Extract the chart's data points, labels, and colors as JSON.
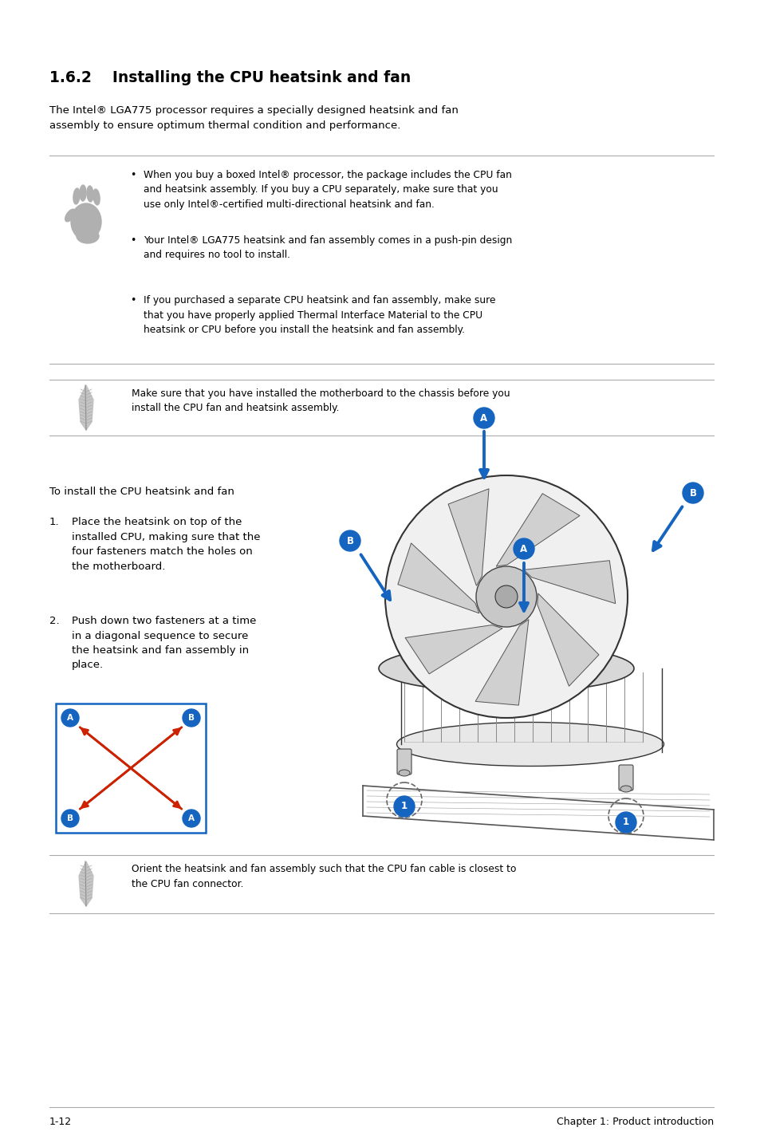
{
  "bg_color": "#ffffff",
  "page_width": 9.54,
  "page_height": 14.38,
  "section_title_num": "1.6.2",
  "section_title_text": "Installing the CPU heatsink and fan",
  "intro_text": "The Intel® LGA775 processor requires a specially designed heatsink and fan\nassembly to ensure optimum thermal condition and performance.",
  "warning_bullets": [
    "When you buy a boxed Intel® processor, the package includes the CPU fan\nand heatsink assembly. If you buy a CPU separately, make sure that you\nuse only Intel®-certified multi-directional heatsink and fan.",
    "Your Intel® LGA775 heatsink and fan assembly comes in a push-pin design\nand requires no tool to install.",
    "If you purchased a separate CPU heatsink and fan assembly, make sure\nthat you have properly applied Thermal Interface Material to the CPU\nheatsink or CPU before you install the heatsink and fan assembly."
  ],
  "note_text": "Make sure that you have installed the motherboard to the chassis before you\ninstall the CPU fan and heatsink assembly.",
  "install_title": "To install the CPU heatsink and fan",
  "step1_num": "1.",
  "step1_text": "Place the heatsink on top of the\ninstalled CPU, making sure that the\nfour fasteners match the holes on\nthe motherboard.",
  "step2_num": "2.",
  "step2_text": "Push down two fasteners at a time\nin a diagonal sequence to secure\nthe heatsink and fan assembly in\nplace.",
  "bottom_note": "Orient the heatsink and fan assembly such that the CPU fan cable is closest to\nthe CPU fan connector.",
  "footer_left": "1-12",
  "footer_right": "Chapter 1: Product introduction",
  "line_color": "#aaaaaa",
  "text_color": "#000000",
  "blue_color": "#1565C0",
  "red_color": "#cc2200"
}
